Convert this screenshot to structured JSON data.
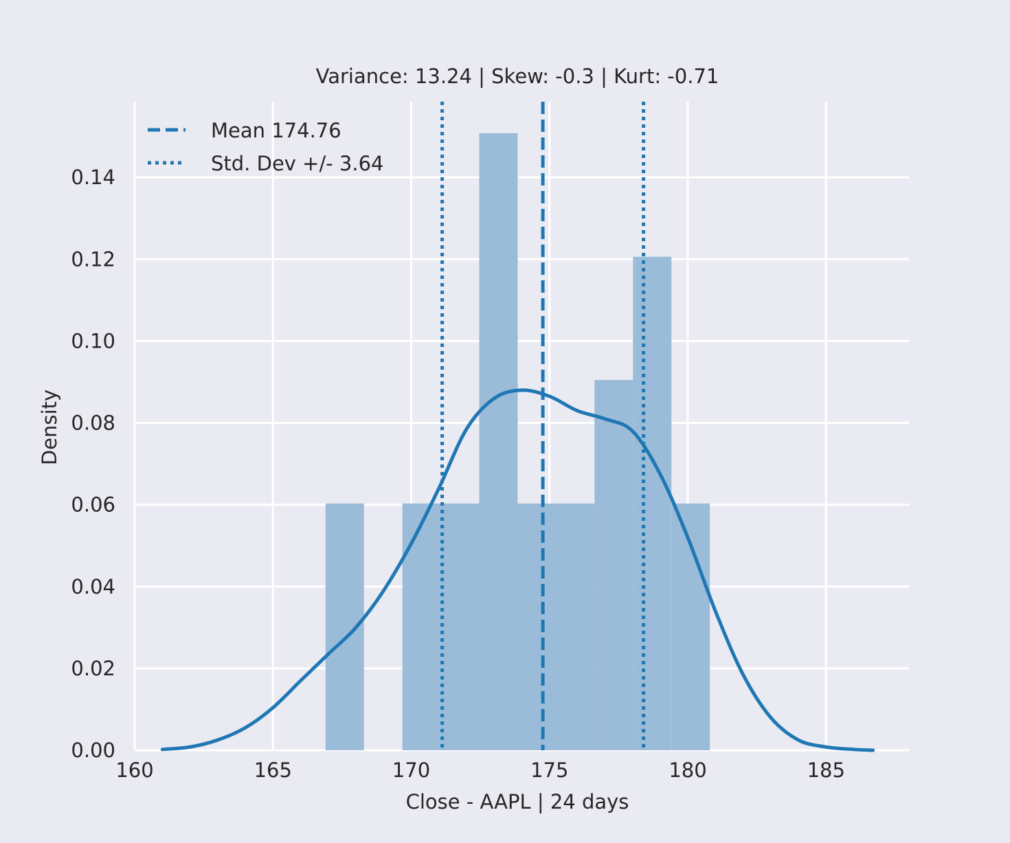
{
  "chart_data": {
    "type": "histogram",
    "title": "Variance: 13.24 | Skew: -0.3 | Kurt: -0.71",
    "xlabel": "Close - AAPL | 24 days",
    "ylabel": "Density",
    "xlim": [
      160.0,
      188.0
    ],
    "ylim": [
      0.0,
      0.1585
    ],
    "xticks": [
      160,
      165,
      170,
      175,
      180,
      185
    ],
    "yticks": [
      0.0,
      0.02,
      0.04,
      0.06,
      0.08,
      0.1,
      0.12,
      0.14
    ],
    "xtick_labels": [
      "160",
      "165",
      "170",
      "175",
      "180",
      "185"
    ],
    "ytick_labels": [
      "0.00",
      "0.02",
      "0.04",
      "0.06",
      "0.08",
      "0.10",
      "0.12",
      "0.14"
    ],
    "grid": true,
    "legend_placement": "top-left",
    "colors": {
      "primary": "#1f77b4",
      "bars": "#9abcd9",
      "background": "#eaeaf2",
      "grid": "#ffffff"
    },
    "histogram": {
      "bin_edges": [
        166.9,
        168.29,
        169.68,
        171.07,
        172.46,
        173.85,
        175.24,
        176.63,
        178.02,
        179.41,
        180.8
      ],
      "density": [
        0.0603,
        0.0,
        0.0603,
        0.0603,
        0.1508,
        0.0603,
        0.0603,
        0.0905,
        0.1206,
        0.0603
      ]
    },
    "kde": {
      "x": [
        161.0,
        162.0,
        163.0,
        164.0,
        165.0,
        166.0,
        167.0,
        168.0,
        169.0,
        170.0,
        171.0,
        172.0,
        173.0,
        174.0,
        175.0,
        176.0,
        177.0,
        178.0,
        179.0,
        180.0,
        181.0,
        182.0,
        183.0,
        184.0,
        185.0,
        186.0,
        186.7
      ],
      "y": [
        0.0002,
        0.0008,
        0.0025,
        0.0055,
        0.0104,
        0.017,
        0.0235,
        0.03,
        0.039,
        0.0505,
        0.064,
        0.0785,
        0.086,
        0.088,
        0.0865,
        0.083,
        0.081,
        0.078,
        0.0675,
        0.052,
        0.034,
        0.0185,
        0.008,
        0.0025,
        0.0008,
        0.0002,
        0.0
      ]
    },
    "mean": 174.76,
    "std": 3.64,
    "legend": [
      {
        "label": "Mean 174.76",
        "style": "dashed"
      },
      {
        "label": "Std. Dev +/- 3.64",
        "style": "dotted"
      }
    ]
  }
}
